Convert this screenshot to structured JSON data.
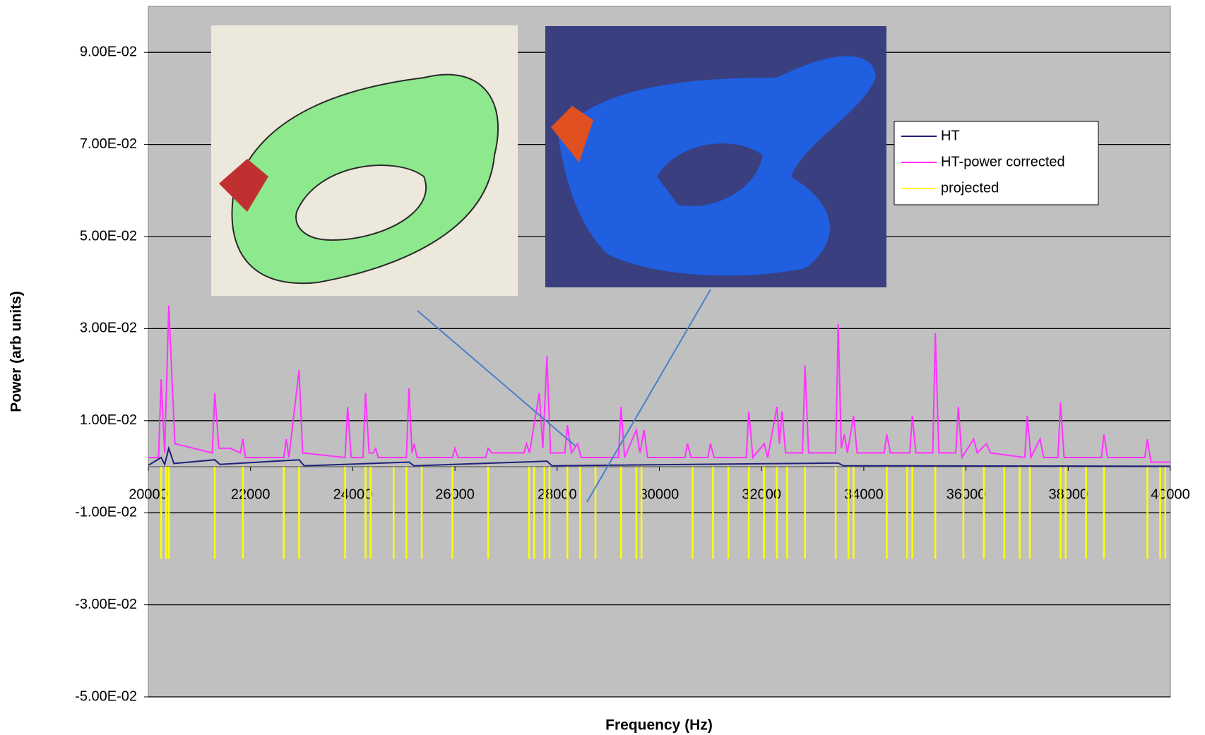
{
  "chart_data": {
    "type": "line",
    "xlabel": "Frequency (Hz)",
    "ylabel": "Power (arb units)",
    "xlim": [
      20000,
      40000
    ],
    "xticks": [
      20000,
      22000,
      24000,
      26000,
      28000,
      30000,
      32000,
      34000,
      36000,
      38000,
      40000
    ],
    "ylim": [
      -0.05,
      0.1
    ],
    "yticks": [
      {
        "value": -0.05,
        "label": "-5.00E-02"
      },
      {
        "value": -0.03,
        "label": "-3.00E-02"
      },
      {
        "value": -0.01,
        "label": "-1.00E-02"
      },
      {
        "value": 0.01,
        "label": "1.00E-02"
      },
      {
        "value": 0.03,
        "label": "3.00E-02"
      },
      {
        "value": 0.05,
        "label": "5.00E-02"
      },
      {
        "value": 0.07,
        "label": "7.00E-02"
      },
      {
        "value": 0.09,
        "label": "9.00E-02"
      }
    ],
    "grid": true,
    "legend": "upper right",
    "series": [
      {
        "name": "HT",
        "color": "#1f1f7a",
        "x": [
          20000,
          20250,
          20320,
          20400,
          20500,
          21300,
          21400,
          22950,
          23050,
          25100,
          25200,
          27800,
          27900,
          33500,
          33600,
          40000
        ],
        "values": [
          0.0003,
          0.002,
          0.0005,
          0.004,
          0.0007,
          0.0015,
          0.0005,
          0.0015,
          0.0002,
          0.001,
          0.0002,
          0.0012,
          0.0002,
          0.0008,
          0.0002,
          0.0001
        ]
      },
      {
        "name": "HT-power corrected",
        "color": "#ff33ff",
        "x": [
          20000,
          20200,
          20250,
          20320,
          20400,
          20520,
          21250,
          21300,
          21380,
          21600,
          21800,
          21850,
          21900,
          22650,
          22700,
          22750,
          22950,
          23020,
          23850,
          23900,
          23970,
          24200,
          24250,
          24320,
          24400,
          24450,
          24500,
          25050,
          25100,
          25160,
          25200,
          25260,
          25950,
          26000,
          26060,
          26600,
          26650,
          26720,
          27350,
          27400,
          27460,
          27650,
          27720,
          27800,
          27870,
          28150,
          28200,
          28280,
          28400,
          28470,
          29200,
          29250,
          29320,
          29550,
          29620,
          29700,
          29770,
          30500,
          30550,
          30620,
          30950,
          31000,
          31070,
          31700,
          31750,
          31830,
          32050,
          32120,
          32300,
          32350,
          32400,
          32470,
          32800,
          32850,
          32920,
          33450,
          33500,
          33560,
          33620,
          33680,
          33800,
          33870,
          34400,
          34450,
          34520,
          34900,
          34950,
          35020,
          35350,
          35400,
          35470,
          35800,
          35850,
          35920,
          36150,
          36220,
          36400,
          36480,
          37150,
          37200,
          37270,
          37450,
          37520,
          37800,
          37850,
          37920,
          38650,
          38700,
          38770,
          39500,
          39550,
          39620,
          40000
        ],
        "values": [
          0.002,
          0.002,
          0.019,
          0.003,
          0.035,
          0.005,
          0.003,
          0.016,
          0.004,
          0.004,
          0.003,
          0.006,
          0.002,
          0.002,
          0.006,
          0.002,
          0.021,
          0.003,
          0.002,
          0.013,
          0.002,
          0.002,
          0.016,
          0.003,
          0.003,
          0.004,
          0.002,
          0.002,
          0.017,
          0.003,
          0.005,
          0.002,
          0.002,
          0.004,
          0.002,
          0.002,
          0.004,
          0.003,
          0.003,
          0.005,
          0.003,
          0.016,
          0.004,
          0.024,
          0.003,
          0.003,
          0.009,
          0.003,
          0.005,
          0.002,
          0.002,
          0.013,
          0.002,
          0.008,
          0.003,
          0.008,
          0.002,
          0.002,
          0.005,
          0.002,
          0.002,
          0.005,
          0.002,
          0.002,
          0.012,
          0.002,
          0.005,
          0.002,
          0.013,
          0.005,
          0.012,
          0.003,
          0.003,
          0.022,
          0.003,
          0.003,
          0.031,
          0.004,
          0.007,
          0.003,
          0.011,
          0.003,
          0.003,
          0.007,
          0.003,
          0.003,
          0.011,
          0.003,
          0.003,
          0.029,
          0.003,
          0.003,
          0.013,
          0.002,
          0.006,
          0.003,
          0.005,
          0.003,
          0.002,
          0.011,
          0.002,
          0.006,
          0.002,
          0.002,
          0.014,
          0.002,
          0.002,
          0.007,
          0.002,
          0.002,
          0.006,
          0.001,
          0.001
        ]
      },
      {
        "name": "projected",
        "color": "#ffff00",
        "style": "stem",
        "x": [
          20250,
          20350,
          20400,
          21300,
          21850,
          22650,
          22950,
          23850,
          24250,
          24350,
          24800,
          25050,
          25350,
          25950,
          26650,
          27450,
          27550,
          27750,
          27850,
          28200,
          28450,
          28750,
          29250,
          29550,
          29650,
          30650,
          31050,
          31350,
          31750,
          32050,
          32300,
          32500,
          32850,
          33450,
          33700,
          33800,
          34450,
          34850,
          34950,
          35400,
          35950,
          36350,
          36750,
          37050,
          37250,
          37850,
          37950,
          38350,
          38700,
          39550,
          39800,
          39900
        ],
        "values": [
          -0.02,
          -0.02,
          -0.02,
          -0.02,
          -0.02,
          -0.02,
          -0.02,
          -0.02,
          -0.02,
          -0.02,
          -0.02,
          -0.02,
          -0.02,
          -0.02,
          -0.02,
          -0.02,
          -0.02,
          -0.02,
          -0.02,
          -0.02,
          -0.02,
          -0.02,
          -0.02,
          -0.02,
          -0.02,
          -0.02,
          -0.02,
          -0.02,
          -0.02,
          -0.02,
          -0.02,
          -0.02,
          -0.02,
          -0.02,
          -0.02,
          -0.02,
          -0.02,
          -0.02,
          -0.02,
          -0.02,
          -0.02,
          -0.02,
          -0.02,
          -0.02,
          -0.02,
          -0.02,
          -0.02,
          -0.02,
          -0.02,
          -0.02,
          -0.02,
          -0.02
        ]
      }
    ]
  }
}
